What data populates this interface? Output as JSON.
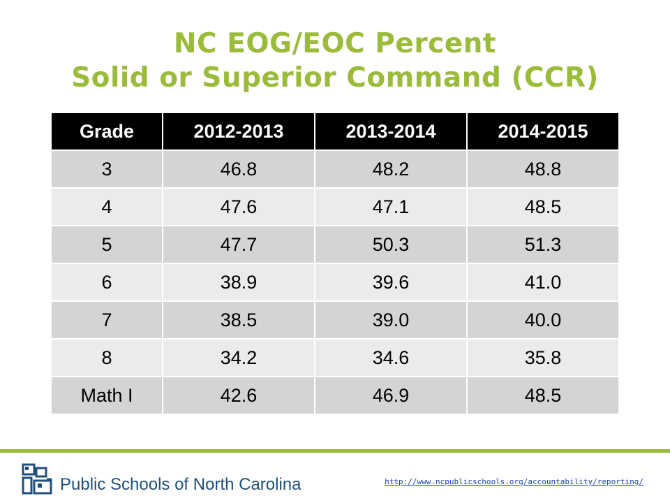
{
  "title": {
    "line1": "NC EOG/EOC Percent",
    "line2": "Solid or Superior Command (CCR)"
  },
  "colors": {
    "accent": "#9bbb3b",
    "header_bg": "#000000",
    "row_dark": "#d4d4d4",
    "row_light": "#ebebeb",
    "logo_blue": "#1f4f7d",
    "link": "#1a40c8"
  },
  "table": {
    "headers": [
      "Grade",
      "2012-2013",
      "2013-2014",
      "2014-2015"
    ],
    "rows": [
      [
        "3",
        "46.8",
        "48.2",
        "48.8"
      ],
      [
        "4",
        "47.6",
        "47.1",
        "48.5"
      ],
      [
        "5",
        "47.7",
        "50.3",
        "51.3"
      ],
      [
        "6",
        "38.9",
        "39.6",
        "41.0"
      ],
      [
        "7",
        "38.5",
        "39.0",
        "40.0"
      ],
      [
        "8",
        "34.2",
        "34.6",
        "35.8"
      ],
      [
        "Math I",
        "42.6",
        "46.9",
        "48.5"
      ]
    ]
  },
  "footer": {
    "logo_icon": "ncdpi-logo-icon",
    "logo_text": "Public Schools of North Carolina",
    "url": "http://www.ncpublicschools.org/accountability/reporting/"
  }
}
